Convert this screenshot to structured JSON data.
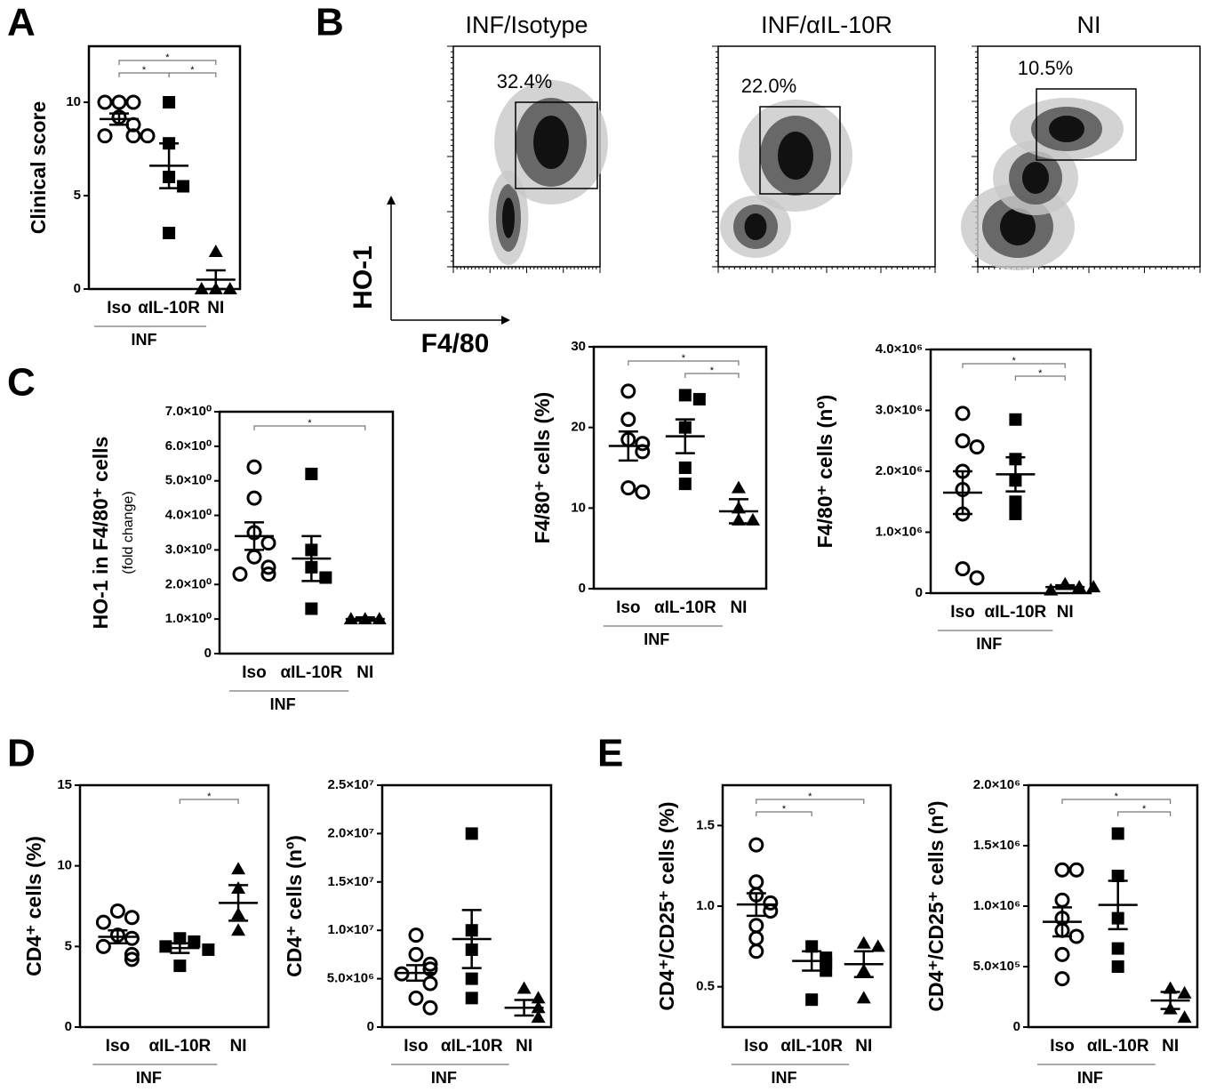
{
  "panels": [
    "A",
    "B",
    "C",
    "D",
    "E"
  ],
  "panel_b_axes": {
    "ylabel": "HO-1",
    "xlabel": "F4/80"
  },
  "chart_data": [
    {
      "type": "dotplot",
      "ylabel": "Clinical score",
      "group_label": "INF",
      "ylim": [
        0,
        13
      ],
      "yticks": [
        0,
        5,
        10
      ],
      "groups": [
        {
          "label": "Iso",
          "marker": "circle",
          "values": [
            10,
            10,
            10,
            9.2,
            8.8,
            8.2,
            8.2,
            8.2
          ],
          "mean": 9.1,
          "sem": 0.3
        },
        {
          "label": "αIL-10R",
          "marker": "square",
          "values": [
            10,
            7.8,
            6,
            5.5,
            3
          ],
          "mean": 6.6,
          "sem": 1.2
        },
        {
          "label": "NI",
          "marker": "triangle",
          "values": [
            2,
            0,
            0,
            0
          ],
          "mean": 0.5,
          "sem": 0.5
        }
      ],
      "significance": [
        {
          "pair": [
            0,
            2
          ],
          "label": "*"
        },
        {
          "pair": [
            0,
            1
          ],
          "label": "*"
        },
        {
          "pair": [
            1,
            2
          ],
          "label": "*"
        }
      ]
    },
    {
      "type": "flow",
      "title": "INF/Isotype",
      "gate_label": "32.4%"
    },
    {
      "type": "flow",
      "title": "INF/αIL-10R",
      "gate_label": "22.0%"
    },
    {
      "type": "flow",
      "title": "NI",
      "gate_label": "10.5%"
    },
    {
      "type": "dotplot",
      "ylabel": "HO-1 in F4/80⁺ cells",
      "subtitle": "(fold change)",
      "group_label": "INF",
      "ylim": [
        0,
        7
      ],
      "yticks": [
        0,
        {
          "value": 1,
          "label": "1.0×10⁰"
        },
        {
          "value": 2,
          "label": "2.0×10⁰"
        },
        {
          "value": 3,
          "label": "3.0×10⁰"
        },
        {
          "value": 4,
          "label": "4.0×10⁰"
        },
        {
          "value": 5,
          "label": "5.0×10⁰"
        },
        {
          "value": 6,
          "label": "6.0×10⁰"
        },
        {
          "value": 7,
          "label": "7.0×10⁰"
        }
      ],
      "groups": [
        {
          "label": "Iso",
          "marker": "circle",
          "values": [
            5.4,
            4.5,
            3.5,
            3.2,
            2.8,
            2.5,
            2.3,
            2.3
          ],
          "mean": 3.4,
          "sem": 0.4
        },
        {
          "label": "αIL-10R",
          "marker": "square",
          "values": [
            5.2,
            3.0,
            2.5,
            2.2,
            1.3
          ],
          "mean": 2.75,
          "sem": 0.65
        },
        {
          "label": "NI",
          "marker": "triangle",
          "values": [
            1,
            1,
            1
          ],
          "mean": 1,
          "sem": 0.05
        }
      ],
      "significance": [
        {
          "pair": [
            0,
            2
          ],
          "label": "*"
        }
      ]
    },
    {
      "type": "dotplot",
      "ylabel": "F4/80⁺ cells (%)",
      "group_label": "INF",
      "ylim": [
        0,
        30
      ],
      "yticks": [
        0,
        10,
        20,
        30
      ],
      "groups": [
        {
          "label": "Iso",
          "marker": "circle",
          "values": [
            24.5,
            21,
            18.5,
            18,
            17,
            12.5,
            12
          ],
          "mean": 17.7,
          "sem": 1.8
        },
        {
          "label": "αIL-10R",
          "marker": "square",
          "values": [
            24,
            23.5,
            20,
            15,
            13
          ],
          "mean": 18.9,
          "sem": 2.1
        },
        {
          "label": "NI",
          "marker": "triangle",
          "values": [
            12.5,
            10,
            8.5,
            8.5
          ],
          "mean": 9.6,
          "sem": 1.5
        }
      ],
      "significance": [
        {
          "pair": [
            0,
            2
          ],
          "label": "*"
        },
        {
          "pair": [
            1,
            2
          ],
          "label": "*"
        }
      ]
    },
    {
      "type": "dotplot",
      "ylabel": "F4/80⁺ cells (nº)",
      "group_label": "INF",
      "ylim": [
        0,
        4000000
      ],
      "yticks": [
        0,
        {
          "value": 1000000,
          "label": "1.0×10⁶"
        },
        {
          "value": 2000000,
          "label": "2.0×10⁶"
        },
        {
          "value": 3000000,
          "label": "3.0×10⁶"
        },
        {
          "value": 4000000,
          "label": "4.0×10⁶"
        }
      ],
      "groups": [
        {
          "label": "Iso",
          "marker": "circle",
          "values": [
            2950000,
            2500000,
            2400000,
            2000000,
            1700000,
            1300000,
            400000,
            250000
          ],
          "mean": 1650000,
          "sem": 350000
        },
        {
          "label": "αIL-10R",
          "marker": "square",
          "values": [
            2850000,
            2200000,
            1850000,
            1500000,
            1300000
          ],
          "mean": 1950000,
          "sem": 280000
        },
        {
          "label": "NI",
          "marker": "triangle",
          "values": [
            150000,
            100000,
            50000,
            100000
          ],
          "mean": 100000,
          "sem": 30000
        }
      ],
      "significance": [
        {
          "pair": [
            0,
            2
          ],
          "label": "*"
        },
        {
          "pair": [
            1,
            2
          ],
          "label": "*"
        }
      ]
    },
    {
      "type": "dotplot",
      "ylabel": "CD4⁺ cells (%)",
      "group_label": "INF",
      "ylim": [
        0,
        15
      ],
      "yticks": [
        0,
        5,
        10,
        15
      ],
      "groups": [
        {
          "label": "Iso",
          "marker": "circle",
          "values": [
            7.2,
            6.8,
            6.5,
            5.7,
            5.5,
            5,
            4.5,
            4.2
          ],
          "mean": 5.6,
          "sem": 0.4
        },
        {
          "label": "αIL-10R",
          "marker": "square",
          "values": [
            5.5,
            5.3,
            5,
            4.8,
            3.8
          ],
          "mean": 4.9,
          "sem": 0.3
        },
        {
          "label": "NI",
          "marker": "triangle",
          "values": [
            9.8,
            8.6,
            7,
            6
          ],
          "mean": 7.7,
          "sem": 1.1
        }
      ],
      "significance": [
        {
          "pair": [
            1,
            2
          ],
          "label": "*"
        }
      ]
    },
    {
      "type": "dotplot",
      "ylabel": "CD4⁺ cells (nº)",
      "group_label": "INF",
      "ylim": [
        0,
        25000000
      ],
      "yticks": [
        0,
        {
          "value": 5000000,
          "label": "5.0×10⁶"
        },
        {
          "value": 10000000,
          "label": "1.0×10⁷"
        },
        {
          "value": 15000000,
          "label": "1.5×10⁷"
        },
        {
          "value": 20000000,
          "label": "2.0×10⁷"
        },
        {
          "value": 25000000,
          "label": "2.5×10⁷"
        }
      ],
      "groups": [
        {
          "label": "Iso",
          "marker": "circle",
          "values": [
            9500000,
            7500000,
            6500000,
            6000000,
            5500000,
            4500000,
            3000000,
            2000000
          ],
          "mean": 5600000,
          "sem": 800000
        },
        {
          "label": "αIL-10R",
          "marker": "square",
          "values": [
            20000000,
            10000000,
            8000000,
            5000000,
            3000000
          ],
          "mean": 9100000,
          "sem": 3000000
        },
        {
          "label": "NI",
          "marker": "triangle",
          "values": [
            4000000,
            3000000,
            2000000,
            1000000
          ],
          "mean": 2000000,
          "sem": 800000
        }
      ],
      "significance": []
    },
    {
      "type": "dotplot",
      "ylabel": "CD4⁺/CD25⁺ cells (%)",
      "group_label": "INF",
      "ylim": [
        0.25,
        1.75
      ],
      "yticks": [
        0.5,
        {
          "value": 1,
          "label": "1.0"
        },
        1.5
      ],
      "groups": [
        {
          "label": "Iso",
          "marker": "circle",
          "values": [
            1.38,
            1.15,
            1.07,
            1.02,
            0.97,
            0.88,
            0.8,
            0.72
          ],
          "mean": 1.01,
          "sem": 0.07
        },
        {
          "label": "αIL-10R",
          "marker": "square",
          "values": [
            0.75,
            0.68,
            0.65,
            0.6,
            0.42
          ],
          "mean": 0.66,
          "sem": 0.06
        },
        {
          "label": "NI",
          "marker": "triangle",
          "values": [
            0.77,
            0.75,
            0.6,
            0.43
          ],
          "mean": 0.64,
          "sem": 0.08
        }
      ],
      "significance": [
        {
          "pair": [
            0,
            2
          ],
          "label": "*"
        },
        {
          "pair": [
            0,
            1
          ],
          "label": "*"
        }
      ]
    },
    {
      "type": "dotplot",
      "ylabel": "CD4⁺/CD25⁺ cells (nº)",
      "group_label": "INF",
      "ylim": [
        0,
        2000000
      ],
      "yticks": [
        0,
        {
          "value": 500000,
          "label": "5.0×10⁵"
        },
        {
          "value": 1000000,
          "label": "1.0×10⁶"
        },
        {
          "value": 1500000,
          "label": "1.5×10⁶"
        },
        {
          "value": 2000000,
          "label": "2.0×10⁶"
        }
      ],
      "groups": [
        {
          "label": "Iso",
          "marker": "circle",
          "values": [
            1300000,
            1300000,
            1050000,
            900000,
            800000,
            750000,
            600000,
            400000
          ],
          "mean": 870000,
          "sem": 120000
        },
        {
          "label": "αIL-10R",
          "marker": "square",
          "values": [
            1600000,
            1250000,
            900000,
            650000,
            500000
          ],
          "mean": 1010000,
          "sem": 200000
        },
        {
          "label": "NI",
          "marker": "triangle",
          "values": [
            320000,
            280000,
            150000,
            80000
          ],
          "mean": 220000,
          "sem": 70000
        }
      ],
      "significance": [
        {
          "pair": [
            0,
            2
          ],
          "label": "*"
        },
        {
          "pair": [
            1,
            2
          ],
          "label": "*"
        }
      ]
    }
  ]
}
